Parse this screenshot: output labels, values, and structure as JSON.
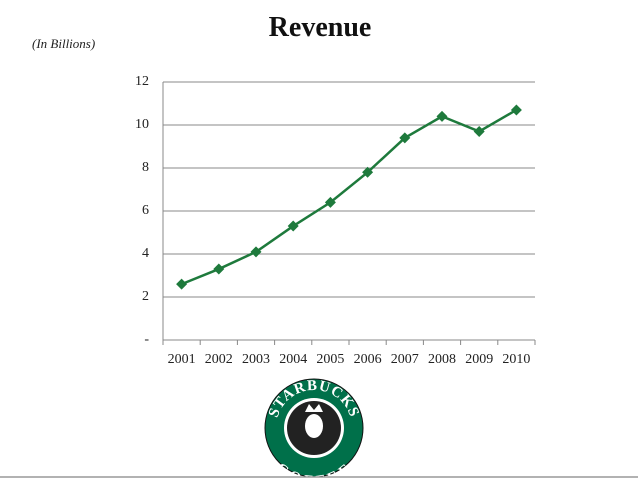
{
  "chart_data": {
    "type": "line",
    "title": "Revenue",
    "subtitle": "(In Billions)",
    "categories": [
      "2001",
      "2002",
      "2003",
      "2004",
      "2005",
      "2006",
      "2007",
      "2008",
      "2009",
      "2010"
    ],
    "series": [
      {
        "name": "Revenue",
        "color": "#1e7a3c",
        "values": [
          2.6,
          3.3,
          4.1,
          5.3,
          6.4,
          7.8,
          9.4,
          10.4,
          9.7,
          10.7
        ]
      }
    ],
    "ylim": [
      0,
      12
    ],
    "yticks": [
      {
        "value": 0,
        "label": "-"
      },
      2,
      4,
      6,
      8,
      10,
      12
    ],
    "grid": true,
    "logo": {
      "top": "STARBUCKS",
      "bottom": "COFFEE"
    }
  }
}
